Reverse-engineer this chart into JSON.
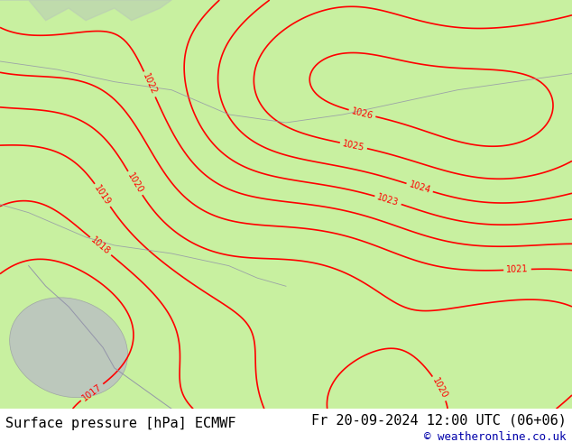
{
  "title_left": "Surface pressure [hPa] ECMWF",
  "title_right": "Fr 20-09-2024 12:00 UTC (06+06)",
  "copyright": "© weatheronline.co.uk",
  "bg_color": "#c8f0a0",
  "contour_color": "#ff0000",
  "map_bg": "#c8f0a0",
  "land_color": "#c8f0a0",
  "sea_color": "#d8d8d8",
  "text_color": "#000000",
  "title_fontsize": 11,
  "label_fontsize": 8,
  "pressure_min": 1017,
  "pressure_max": 1031,
  "pressure_step": 1,
  "figsize": [
    6.34,
    4.9
  ],
  "dpi": 100
}
